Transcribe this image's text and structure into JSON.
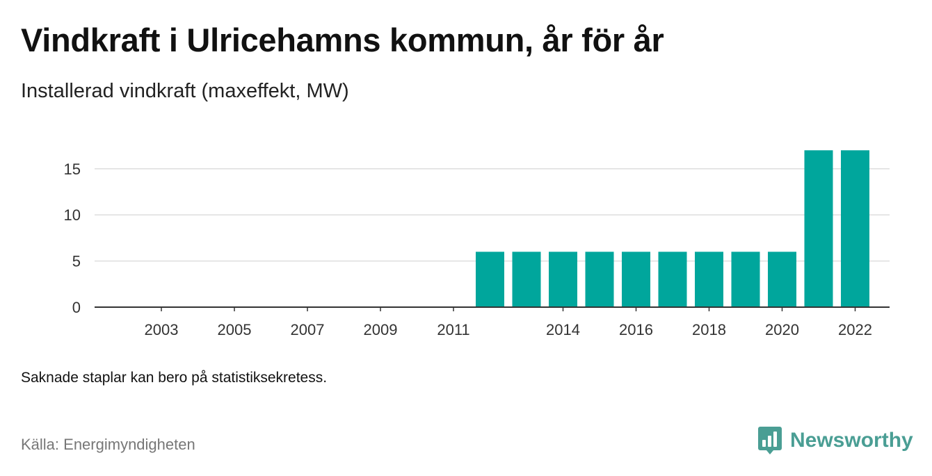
{
  "title": "Vindkraft i Ulricehamns kommun, år för år",
  "subtitle": "Installerad vindkraft (maxeffekt, MW)",
  "note": "Saknade staplar kan bero på statistiksekretess.",
  "source": "Källa: Energimyndigheten",
  "brand": {
    "name": "Newsworthy",
    "icon": "newsworthy-logo-icon",
    "color": "#4a9e94"
  },
  "colors": {
    "bar": "#00a69c",
    "grid": "#dddddd",
    "axis": "#333333",
    "tick_text": "#333333"
  },
  "chart_data": {
    "type": "bar",
    "categories": [
      "2002",
      "2003",
      "2004",
      "2005",
      "2006",
      "2007",
      "2008",
      "2009",
      "2010",
      "2011",
      "2012",
      "2013",
      "2014",
      "2015",
      "2016",
      "2017",
      "2018",
      "2019",
      "2020",
      "2021",
      "2022"
    ],
    "values": [
      null,
      null,
      null,
      null,
      null,
      null,
      null,
      null,
      null,
      null,
      6,
      6,
      6,
      6,
      6,
      6,
      6,
      6,
      6,
      17,
      17
    ],
    "x_tick_labels": [
      "2003",
      "2005",
      "2007",
      "2009",
      "2011",
      "2014",
      "2016",
      "2018",
      "2020",
      "2022"
    ],
    "y_ticks": [
      0,
      5,
      10,
      15
    ],
    "ylim": [
      0,
      18
    ],
    "title": "Vindkraft i Ulricehamns kommun, år för år",
    "subtitle": "Installerad vindkraft (maxeffekt, MW)",
    "xlabel": "",
    "ylabel": "",
    "grid": true,
    "legend": "none"
  }
}
